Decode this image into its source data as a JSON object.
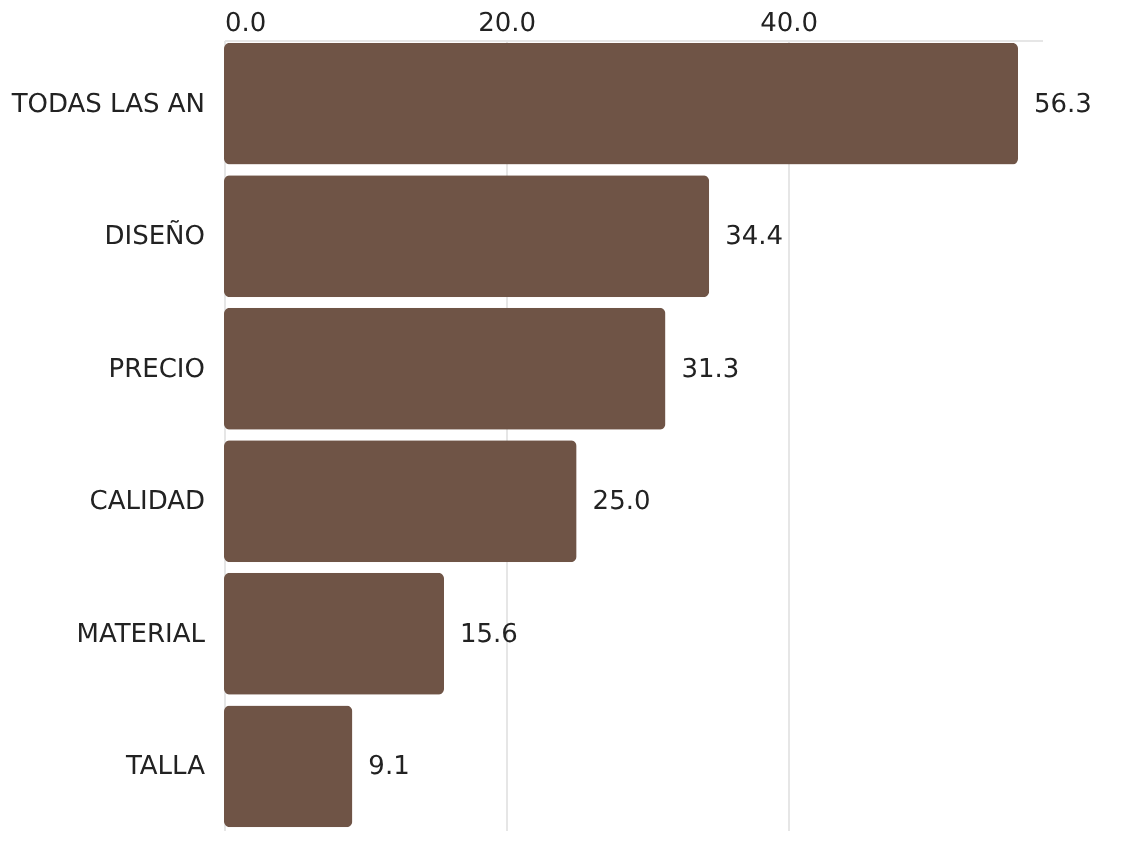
{
  "chart_data": {
    "type": "bar",
    "orientation": "horizontal",
    "categories": [
      "TODAS LAS AN",
      "DISEÑO",
      "PRECIO",
      "CALIDAD",
      "MATERIAL",
      "TALLA"
    ],
    "values": [
      56.3,
      34.4,
      31.3,
      25.0,
      15.6,
      9.1
    ],
    "color": "#6f5446",
    "xlim": [
      0,
      58
    ],
    "xticks": [
      {
        "value": 0,
        "label": "0.0"
      },
      {
        "value": 20,
        "label": "20.0"
      },
      {
        "value": 40,
        "label": "40.0"
      }
    ],
    "value_labels": [
      "56.3",
      "34.4",
      "31.3",
      "25.0",
      "15.6",
      "9.1"
    ],
    "grid": "x"
  }
}
